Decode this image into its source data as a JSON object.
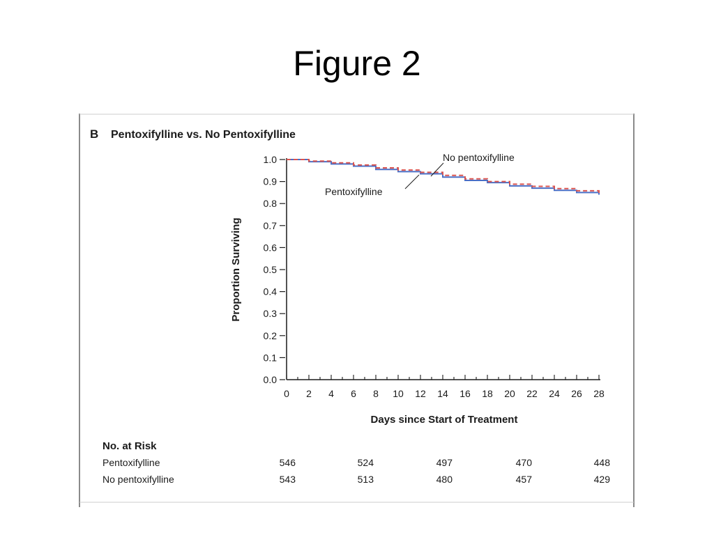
{
  "slide": {
    "title": "Figure 2"
  },
  "chart_data": {
    "type": "line",
    "panel_letter": "B",
    "title": "Pentoxifylline vs. No Pentoxifylline",
    "xlabel": "Days since Start of Treatment",
    "ylabel": "Proportion Surviving",
    "xlim": [
      0,
      28
    ],
    "ylim": [
      0,
      1.0
    ],
    "x_ticks": [
      0,
      2,
      4,
      6,
      8,
      10,
      12,
      14,
      16,
      18,
      20,
      22,
      24,
      26,
      28
    ],
    "y_ticks": [
      "0.0",
      "0.1",
      "0.2",
      "0.3",
      "0.4",
      "0.5",
      "0.6",
      "0.7",
      "0.8",
      "0.9",
      "1.0"
    ],
    "series": [
      {
        "name": "Pentoxifylline",
        "color": "#4a6fc6",
        "style": "solid",
        "x": [
          0,
          2,
          4,
          6,
          8,
          10,
          12,
          14,
          16,
          18,
          20,
          22,
          24,
          26,
          28
        ],
        "y": [
          1.0,
          0.99,
          0.98,
          0.97,
          0.955,
          0.945,
          0.935,
          0.92,
          0.905,
          0.895,
          0.88,
          0.87,
          0.86,
          0.85,
          0.84
        ]
      },
      {
        "name": "No pentoxifylline",
        "color": "#d9534f",
        "style": "dashed",
        "x": [
          0,
          2,
          4,
          6,
          8,
          10,
          12,
          14,
          16,
          18,
          20,
          22,
          24,
          26,
          28
        ],
        "y": [
          1.0,
          0.993,
          0.985,
          0.975,
          0.962,
          0.952,
          0.942,
          0.928,
          0.912,
          0.9,
          0.888,
          0.878,
          0.868,
          0.858,
          0.845
        ]
      }
    ],
    "annotations": [
      {
        "text": "No pentoxifylline",
        "series": "No pentoxifylline"
      },
      {
        "text": "Pentoxifylline",
        "series": "Pentoxifylline"
      }
    ],
    "risk_table": {
      "header": "No. at Risk",
      "rows": [
        {
          "label": "Pentoxifylline",
          "values": [
            "546",
            "524",
            "497",
            "470",
            "448"
          ]
        },
        {
          "label": "No pentoxifylline",
          "values": [
            "543",
            "513",
            "480",
            "457",
            "429"
          ]
        }
      ]
    }
  }
}
